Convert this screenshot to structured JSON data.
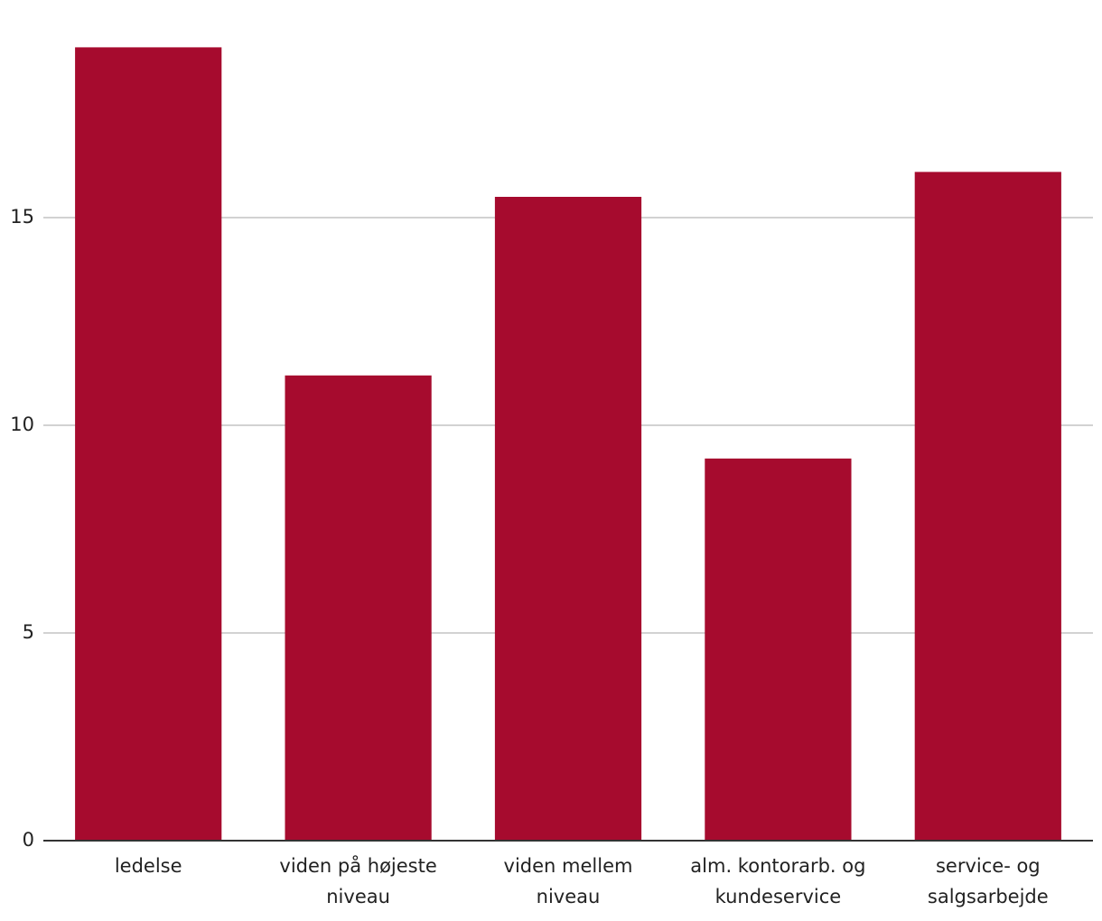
{
  "chart_data": {
    "type": "bar",
    "categories": [
      "ledelse",
      "viden på højeste niveau",
      "viden mellem niveau",
      "alm. kontorarb. og kundeservice",
      "service- og salgsarbejde"
    ],
    "values": [
      19.1,
      11.2,
      15.5,
      9.2,
      16.1
    ],
    "color": "#a60b2e",
    "ylim": [
      0,
      20
    ],
    "yticks": [
      0,
      5,
      10,
      15
    ],
    "grid": true
  }
}
